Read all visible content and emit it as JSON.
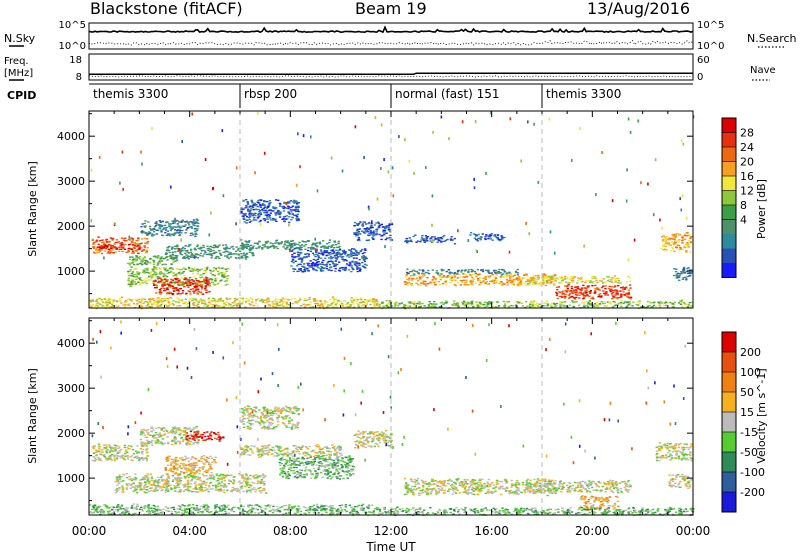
{
  "header": {
    "station": "Blackstone (fitACF)",
    "beam": "Beam 19",
    "date": "13/Aug/2016"
  },
  "summary": {
    "nsky_label": "N.Sky",
    "nsearch_label": "N.Search",
    "freq_label": "Freq.",
    "freq_unit": "[MHz]",
    "nave_label": "Nave",
    "cpid_label": "CPID",
    "left_ticks_top": [
      "10^5",
      "10^0"
    ],
    "right_ticks_top": [
      "10^5",
      "10^0"
    ],
    "freq_ticks": [
      "18",
      "8"
    ],
    "nave_ticks": [
      "60",
      "0"
    ],
    "cpid_segments": [
      {
        "label": "themis 3300",
        "start": 0
      },
      {
        "label": "rbsp 200",
        "start": 6
      },
      {
        "label": "normal (fast) 151",
        "start": 12
      },
      {
        "label": "themis 3300",
        "start": 18
      }
    ],
    "freq_series": {
      "x": [
        0,
        12.9,
        13.0,
        24
      ],
      "y": [
        10.2,
        10.2,
        10.6,
        10.6
      ]
    }
  },
  "chart_data": [
    {
      "type": "heatmap",
      "xlabel": "",
      "ylabel": "Slant Range [km]",
      "x_ticks": [
        "00:00",
        "04:00",
        "08:00",
        "12:00",
        "16:00",
        "20:00",
        "00:00"
      ],
      "xlim": [
        0,
        24
      ],
      "ylim": [
        180,
        4560
      ],
      "y_ticks": [
        "1000",
        "2000",
        "3000",
        "4000"
      ],
      "y_tick_values": [
        1000,
        2000,
        3000,
        4000
      ],
      "colorbar": {
        "label": "Power [dB]",
        "ticks": [
          "4",
          "8",
          "12",
          "16",
          "20",
          "24",
          "28"
        ],
        "colors": [
          "#1a1aff",
          "#2851b8",
          "#2e8b9b",
          "#4f8f6a",
          "#3c9f48",
          "#8cc83c",
          "#f0e63c",
          "#f5a020",
          "#ee6a10",
          "#e83010",
          "#dd0000"
        ]
      },
      "regions": [
        {
          "t0": 0.1,
          "t1": 2.3,
          "r0": 1400,
          "r1": 1750,
          "level": 8
        },
        {
          "t0": 0.3,
          "t1": 2.0,
          "r0": 1500,
          "r1": 1600,
          "level": 10
        },
        {
          "t0": 2.0,
          "t1": 4.3,
          "r0": 1800,
          "r1": 2150,
          "level": 2
        },
        {
          "t0": 1.5,
          "t1": 3.5,
          "r0": 1150,
          "r1": 1350,
          "level": 4
        },
        {
          "t0": 3.0,
          "t1": 6.5,
          "r0": 1300,
          "r1": 1600,
          "level": 3
        },
        {
          "t0": 1.5,
          "t1": 5.5,
          "r0": 700,
          "r1": 1100,
          "level": 5
        },
        {
          "t0": 2.5,
          "t1": 4.8,
          "r0": 500,
          "r1": 850,
          "level": 9
        },
        {
          "t0": 0.0,
          "t1": 11.5,
          "r0": 200,
          "r1": 420,
          "level": 6
        },
        {
          "t0": 6.0,
          "t1": 10.0,
          "r0": 1500,
          "r1": 1700,
          "level": 3
        },
        {
          "t0": 6.0,
          "t1": 8.3,
          "r0": 2100,
          "r1": 2600,
          "level": 1
        },
        {
          "t0": 8.0,
          "t1": 11.0,
          "r0": 1000,
          "r1": 1500,
          "level": 1
        },
        {
          "t0": 10.5,
          "t1": 12.0,
          "r0": 1700,
          "r1": 2100,
          "level": 1
        },
        {
          "t0": 12.5,
          "t1": 18.5,
          "r0": 700,
          "r1": 950,
          "level": 7
        },
        {
          "t0": 12.5,
          "t1": 17.0,
          "r0": 950,
          "r1": 1050,
          "level": 2
        },
        {
          "t0": 17.3,
          "t1": 21.5,
          "r0": 750,
          "r1": 900,
          "level": 6
        },
        {
          "t0": 18.5,
          "t1": 21.5,
          "r0": 400,
          "r1": 700,
          "level": 9
        },
        {
          "t0": 11.5,
          "t1": 24.0,
          "r0": 200,
          "r1": 350,
          "level": 5
        },
        {
          "t0": 22.7,
          "t1": 23.9,
          "r0": 1450,
          "r1": 1850,
          "level": 7
        },
        {
          "t0": 23.2,
          "t1": 23.9,
          "r0": 800,
          "r1": 1100,
          "level": 2
        },
        {
          "t0": 12.5,
          "t1": 14.5,
          "r0": 1650,
          "r1": 1800,
          "level": 1
        },
        {
          "t0": 15.0,
          "t1": 16.5,
          "r0": 1700,
          "r1": 1850,
          "level": 1
        }
      ]
    },
    {
      "type": "heatmap",
      "xlabel": "Time UT",
      "ylabel": "Slant Range [km]",
      "x_ticks": [
        "00:00",
        "04:00",
        "08:00",
        "12:00",
        "16:00",
        "20:00",
        "00:00"
      ],
      "xlim": [
        0,
        24
      ],
      "ylim": [
        180,
        4560
      ],
      "y_ticks": [
        "1000",
        "2000",
        "3000",
        "4000"
      ],
      "y_tick_values": [
        1000,
        2000,
        3000,
        4000
      ],
      "colorbar": {
        "label": "Velocity [m s^-1]",
        "ticks": [
          "200",
          "100",
          "50",
          "15",
          "-15",
          "-50",
          "-100",
          "-200"
        ],
        "colors": [
          "#1a1adc",
          "#2e5e9b",
          "#2e8b57",
          "#55cc33",
          "#bbbbbb",
          "#f5b020",
          "#f08010",
          "#e85010",
          "#dd0000"
        ]
      },
      "regions": [
        {
          "t0": 0.1,
          "t1": 2.3,
          "r0": 1400,
          "r1": 1750,
          "level": 4
        },
        {
          "t0": 2.0,
          "t1": 4.3,
          "r0": 1750,
          "r1": 2150,
          "level": 4
        },
        {
          "t0": 3.0,
          "t1": 5.0,
          "r0": 1100,
          "r1": 1500,
          "level": 5
        },
        {
          "t0": 3.8,
          "t1": 5.3,
          "r0": 1850,
          "r1": 2050,
          "level": 8
        },
        {
          "t0": 1.0,
          "t1": 7.0,
          "r0": 700,
          "r1": 1100,
          "level": 4
        },
        {
          "t0": 0.0,
          "t1": 11.5,
          "r0": 200,
          "r1": 420,
          "level": 3
        },
        {
          "t0": 6.0,
          "t1": 8.3,
          "r0": 2100,
          "r1": 2600,
          "level": 4
        },
        {
          "t0": 7.5,
          "t1": 10.5,
          "r0": 1000,
          "r1": 1500,
          "level": 3
        },
        {
          "t0": 6.0,
          "t1": 10.0,
          "r0": 1500,
          "r1": 1750,
          "level": 4
        },
        {
          "t0": 10.5,
          "t1": 12.0,
          "r0": 1700,
          "r1": 2050,
          "level": 4
        },
        {
          "t0": 12.5,
          "t1": 18.5,
          "r0": 650,
          "r1": 1000,
          "level": 4
        },
        {
          "t0": 17.3,
          "t1": 21.5,
          "r0": 700,
          "r1": 950,
          "level": 4
        },
        {
          "t0": 19.5,
          "t1": 21.0,
          "r0": 300,
          "r1": 600,
          "level": 5
        },
        {
          "t0": 11.5,
          "t1": 24.0,
          "r0": 200,
          "r1": 350,
          "level": 3
        },
        {
          "t0": 22.5,
          "t1": 23.9,
          "r0": 1400,
          "r1": 1800,
          "level": 4
        },
        {
          "t0": 23.0,
          "t1": 23.9,
          "r0": 800,
          "r1": 1100,
          "level": 4
        }
      ]
    }
  ]
}
